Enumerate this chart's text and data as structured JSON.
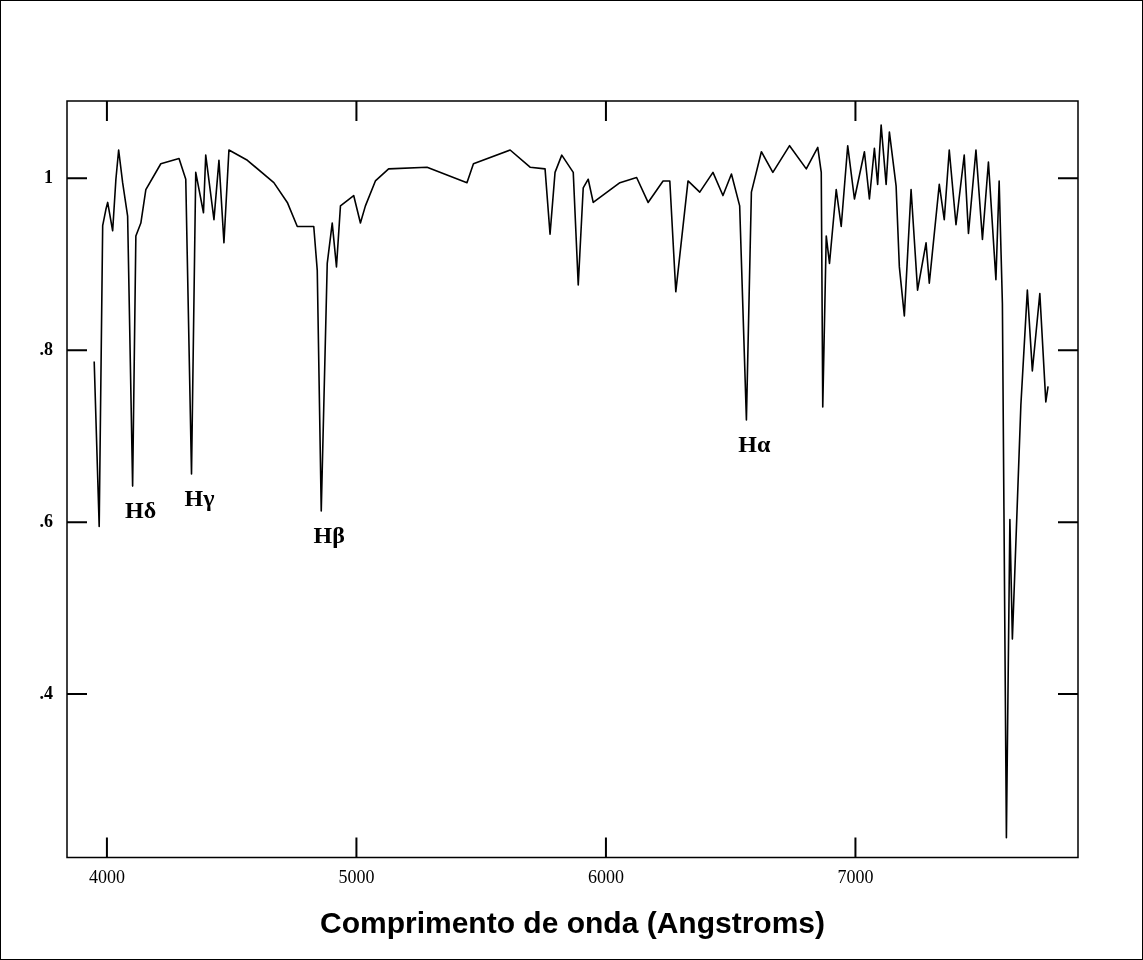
{
  "chart_data": {
    "type": "line",
    "xlabel": "Comprimento de onda (Angstroms)",
    "color": "#000000",
    "marker": "none",
    "x": [
      3949,
      3969,
      3983,
      3996,
      4003,
      4023,
      4036,
      4047,
      4063,
      4083,
      4103,
      4116,
      4136,
      4156,
      4216,
      4289,
      4316,
      4339,
      4356,
      4387,
      4396,
      4429,
      4449,
      4469,
      4489,
      4563,
      4669,
      4723,
      4763,
      4829,
      4843,
      4859,
      4883,
      4903,
      4920,
      4936,
      4989,
      5016,
      5036,
      5076,
      5129,
      5283,
      5443,
      5469,
      5616,
      5696,
      5756,
      5776,
      5796,
      5823,
      5869,
      5889,
      5909,
      5929,
      5949,
      6056,
      6123,
      6169,
      6229,
      6256,
      6280,
      6329,
      6376,
      6429,
      6469,
      6503,
      6536,
      6563,
      6583,
      6623,
      6669,
      6736,
      6803,
      6849,
      6863,
      6869,
      6883,
      6896,
      6923,
      6943,
      6969,
      6996,
      7036,
      7056,
      7076,
      7089,
      7103,
      7123,
      7136,
      7163,
      7176,
      7196,
      7223,
      7249,
      7283,
      7296,
      7336,
      7356,
      7376,
      7403,
      7436,
      7453,
      7483,
      7509,
      7533,
      7563,
      7576,
      7589,
      7605,
      7619,
      7629,
      7663,
      7689,
      7709,
      7739,
      7763,
      7772
    ],
    "values": [
      0.787,
      0.595,
      0.945,
      0.964,
      0.972,
      0.939,
      0.999,
      1.033,
      0.995,
      0.956,
      0.642,
      0.933,
      0.948,
      0.987,
      1.017,
      1.023,
      0.999,
      0.656,
      1.007,
      0.96,
      1.027,
      0.952,
      1.021,
      0.925,
      1.033,
      1.021,
      0.995,
      0.972,
      0.944,
      0.944,
      0.893,
      0.613,
      0.901,
      0.948,
      0.897,
      0.968,
      0.98,
      0.948,
      0.968,
      0.997,
      1.011,
      1.013,
      0.995,
      1.017,
      1.033,
      1.013,
      1.011,
      0.935,
      1.007,
      1.027,
      1.007,
      0.876,
      0.989,
      0.999,
      0.972,
      0.995,
      1.001,
      0.972,
      0.997,
      0.997,
      0.868,
      0.997,
      0.984,
      1.007,
      0.98,
      1.005,
      0.968,
      0.719,
      0.984,
      1.031,
      1.007,
      1.038,
      1.011,
      1.036,
      1.007,
      0.734,
      0.933,
      0.901,
      0.987,
      0.944,
      1.038,
      0.976,
      1.031,
      0.976,
      1.035,
      0.993,
      1.062,
      0.993,
      1.054,
      0.991,
      0.897,
      0.84,
      0.987,
      0.87,
      0.925,
      0.878,
      0.993,
      0.952,
      1.033,
      0.946,
      1.027,
      0.936,
      1.033,
      0.929,
      1.019,
      0.882,
      0.997,
      0.854,
      0.233,
      0.603,
      0.464,
      0.736,
      0.87,
      0.776,
      0.866,
      0.74,
      0.758
    ],
    "xlim": [
      3840,
      7892
    ],
    "xticks": [
      4000,
      5000,
      6000,
      7000
    ],
    "ylim": [
      0.21,
      1.09
    ],
    "yticks": [
      {
        "value": 0.4,
        "label": ".4"
      },
      {
        "value": 0.6,
        "label": ".6"
      },
      {
        "value": 0.8,
        "label": ".8"
      },
      1
    ],
    "annotations": [
      {
        "text": "Hδ",
        "x": 4103,
        "y": 0.642
      },
      {
        "text": "Hγ",
        "x": 4339,
        "y": 0.656
      },
      {
        "text": "Hβ",
        "x": 4859,
        "y": 0.613
      },
      {
        "text": "Hα",
        "x": 6563,
        "y": 0.719
      }
    ]
  }
}
